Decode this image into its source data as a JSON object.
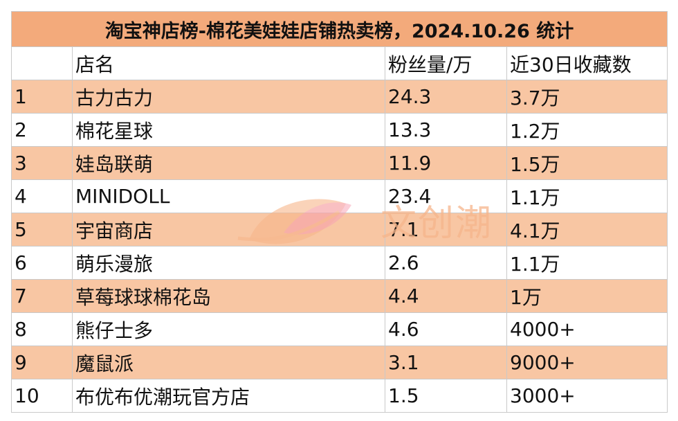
{
  "title": "淘宝神店榜-棉花美娃娃店铺热卖榜，2024.10.26 统计",
  "headers": {
    "rank": "",
    "name": "店名",
    "fans": "粉丝量/万",
    "favorites": "近30日收藏数"
  },
  "rows": [
    {
      "rank": "1",
      "name": "古力古力",
      "fans": "24.3",
      "favorites": "3.7万"
    },
    {
      "rank": "2",
      "name": "棉花星球",
      "fans": "13.3",
      "favorites": "1.2万"
    },
    {
      "rank": "3",
      "name": "娃岛联萌",
      "fans": "11.9",
      "favorites": "1.5万"
    },
    {
      "rank": "4",
      "name": "MINIDOLL",
      "fans": "23.4",
      "favorites": "1.1万"
    },
    {
      "rank": "5",
      "name": "宇宙商店",
      "fans": "7.1",
      "favorites": "4.1万"
    },
    {
      "rank": "6",
      "name": "萌乐漫旅",
      "fans": "2.6",
      "favorites": "1.1万"
    },
    {
      "rank": "7",
      "name": "草莓球球棉花岛",
      "fans": "4.4",
      "favorites": "1万"
    },
    {
      "rank": "8",
      "name": "熊仔士多",
      "fans": "4.6",
      "favorites": "4000+"
    },
    {
      "rank": "9",
      "name": "魔鼠派",
      "fans": "3.1",
      "favorites": "9000+"
    },
    {
      "rank": "10",
      "name": "布优布优潮玩官方店",
      "fans": "1.5",
      "favorites": "3000+"
    }
  ],
  "watermark": {
    "text": "文创潮",
    "icon": "leaf-logo-icon"
  },
  "colors": {
    "title_bg": "#f3aa7b",
    "stripe_bg": "#f8c6a3",
    "border": "#c9c9c9",
    "watermark": "#f6b58b"
  }
}
